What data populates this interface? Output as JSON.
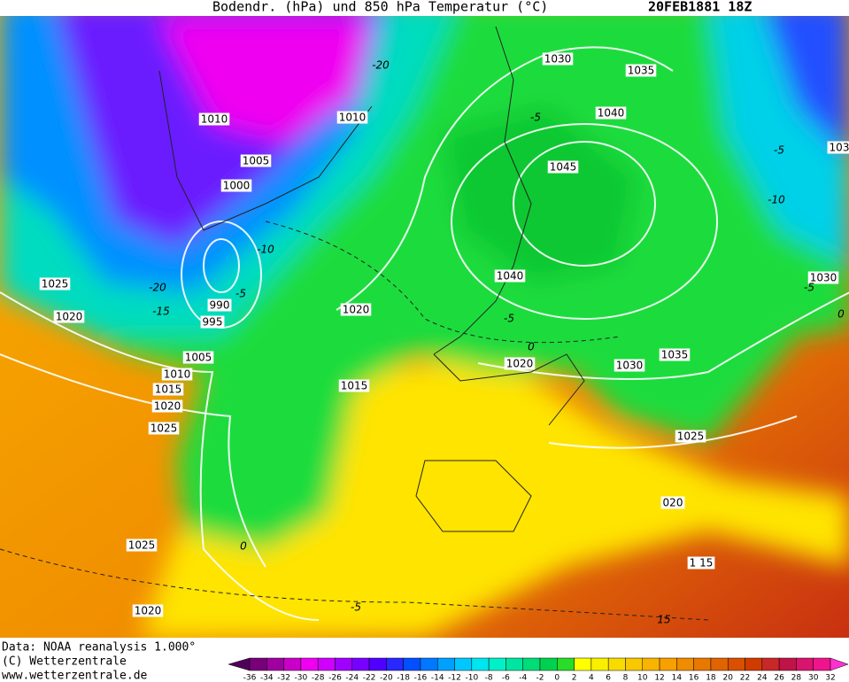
{
  "header": {
    "title": "Bodendr. (hPa) und 850 hPa Temperatur (°C)",
    "date": "20FEB1881 18Z"
  },
  "isobar_labels": [
    "1030",
    "1035",
    "1010",
    "1010",
    "1040",
    "1005",
    "1045",
    "1000",
    "103",
    "1025",
    "1040",
    "1030",
    "990",
    "1020",
    "995",
    "1020",
    "1005",
    "1020",
    "1030",
    "1035",
    "1010",
    "1015",
    "1015",
    "1020",
    "1025",
    "1025",
    "020",
    "1025",
    "1 15",
    "1020"
  ],
  "temperature_labels": [
    "-20",
    "-5",
    "-5",
    "-10",
    "-10",
    "-20",
    "-15",
    "-5",
    "-5",
    "0",
    "-5",
    "0",
    "0",
    "-5",
    "15"
  ],
  "footer": {
    "lines": [
      "Data: NOAA reanalysis 1.000°",
      "(C) Wetterzentrale",
      "www.wetterzentrale.de"
    ]
  },
  "colorbar": {
    "labels": [
      "-36",
      "-34",
      "-32",
      "-30",
      "-28",
      "-26",
      "-24",
      "-22",
      "-20",
      "-18",
      "-16",
      "-14",
      "-12",
      "-10",
      "-8",
      "-6",
      "-4",
      "-2",
      "0",
      "2",
      "4",
      "6",
      "8",
      "10",
      "12",
      "14",
      "16",
      "18",
      "20",
      "22",
      "24",
      "26",
      "28",
      "30",
      "32"
    ],
    "colors": [
      "#50005a",
      "#780078",
      "#a000a0",
      "#c800c8",
      "#f000f0",
      "#d000ff",
      "#a000ff",
      "#7800ff",
      "#5000ff",
      "#2828ff",
      "#0050ff",
      "#0078ff",
      "#00a0ff",
      "#00c8ff",
      "#00e6f0",
      "#00f0c8",
      "#00e6a0",
      "#00dc78",
      "#00d250",
      "#28dc28",
      "#ffff00",
      "#f8f000",
      "#f8dc00",
      "#f8c800",
      "#f8b400",
      "#f8a000",
      "#f08c00",
      "#e87800",
      "#e06400",
      "#d85000",
      "#d03c00",
      "#c82828",
      "#c01448",
      "#d8146e",
      "#f0148c",
      "#ff30d0"
    ]
  }
}
